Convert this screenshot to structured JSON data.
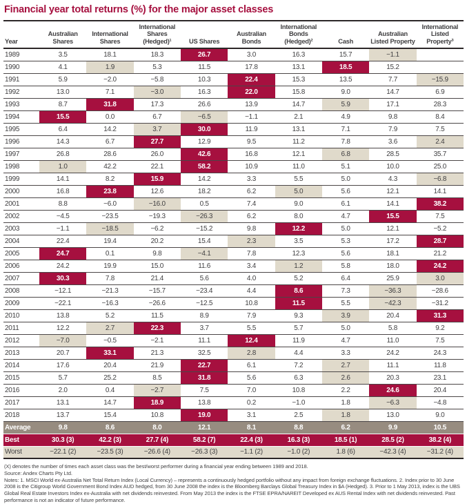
{
  "title": "Financial year total returns (%) for the major asset classes",
  "colors": {
    "accent_crimson": "#A6103F",
    "worst_beige": "#E0DACB",
    "average_taupe": "#978C80",
    "rule_dark": "#2b2627"
  },
  "table": {
    "columns": [
      "Year",
      "Australian Shares",
      "International Shares",
      "International Shares (Hedged)¹",
      "US Shares",
      "Australian Bonds",
      "International Bonds (Hedged)²",
      "Cash",
      "Australian Listed Property",
      "International Listed Property³"
    ],
    "rows": [
      {
        "year": "1989",
        "values": [
          "3.5",
          "18.1",
          "18.3",
          "26.7",
          "3.0",
          "16.3",
          "15.7",
          "−1.1",
          ""
        ],
        "best": 3,
        "worst": 7
      },
      {
        "year": "1990",
        "values": [
          "4.1",
          "1.9",
          "5.3",
          "11.5",
          "17.8",
          "13.1",
          "18.5",
          "15.2",
          ""
        ],
        "best": 6,
        "worst": 1
      },
      {
        "year": "1991",
        "values": [
          "5.9",
          "−2.0",
          "−5.8",
          "10.3",
          "22.4",
          "15.3",
          "13.5",
          "7.7",
          "−15.9"
        ],
        "best": 4,
        "worst": 8
      },
      {
        "year": "1992",
        "values": [
          "13.0",
          "7.1",
          "−3.0",
          "16.3",
          "22.0",
          "15.8",
          "9.0",
          "14.7",
          "6.9"
        ],
        "best": 4,
        "worst": 2
      },
      {
        "year": "1993",
        "values": [
          "8.7",
          "31.8",
          "17.3",
          "26.6",
          "13.9",
          "14.7",
          "5.9",
          "17.1",
          "28.3"
        ],
        "best": 1,
        "worst": 6
      },
      {
        "year": "1994",
        "values": [
          "15.5",
          "0.0",
          "6.7",
          "−6.5",
          "−1.1",
          "2.1",
          "4.9",
          "9.8",
          "8.4"
        ],
        "best": 0,
        "worst": 3
      },
      {
        "year": "1995",
        "values": [
          "6.4",
          "14.2",
          "3.7",
          "30.0",
          "11.9",
          "13.1",
          "7.1",
          "7.9",
          "7.5"
        ],
        "best": 3,
        "worst": 2
      },
      {
        "year": "1996",
        "values": [
          "14.3",
          "6.7",
          "27.7",
          "12.9",
          "9.5",
          "11.2",
          "7.8",
          "3.6",
          "2.4"
        ],
        "best": 2,
        "worst": 8
      },
      {
        "year": "1997",
        "values": [
          "26.8",
          "28.6",
          "26.0",
          "42.6",
          "16.8",
          "12.1",
          "6.8",
          "28.5",
          "35.7"
        ],
        "best": 3,
        "worst": 6
      },
      {
        "year": "1998",
        "values": [
          "1.0",
          "42.2",
          "22.1",
          "58.2",
          "10.9",
          "11.0",
          "5.1",
          "10.0",
          "25.0"
        ],
        "best": 3,
        "worst": 0
      },
      {
        "year": "1999",
        "values": [
          "14.1",
          "8.2",
          "15.9",
          "14.2",
          "3.3",
          "5.5",
          "5.0",
          "4.3",
          "−6.8"
        ],
        "best": 2,
        "worst": 8
      },
      {
        "year": "2000",
        "values": [
          "16.8",
          "23.8",
          "12.6",
          "18.2",
          "6.2",
          "5.0",
          "5.6",
          "12.1",
          "14.1"
        ],
        "best": 1,
        "worst": 5
      },
      {
        "year": "2001",
        "values": [
          "8.8",
          "−6.0",
          "−16.0",
          "0.5",
          "7.4",
          "9.0",
          "6.1",
          "14.1",
          "38.2"
        ],
        "best": 8,
        "worst": 2
      },
      {
        "year": "2002",
        "values": [
          "−4.5",
          "−23.5",
          "−19.3",
          "−26.3",
          "6.2",
          "8.0",
          "4.7",
          "15.5",
          "7.5"
        ],
        "best": 7,
        "worst": 3
      },
      {
        "year": "2003",
        "values": [
          "−1.1",
          "−18.5",
          "−6.2",
          "−15.2",
          "9.8",
          "12.2",
          "5.0",
          "12.1",
          "−5.2"
        ],
        "best": 5,
        "worst": 1
      },
      {
        "year": "2004",
        "values": [
          "22.4",
          "19.4",
          "20.2",
          "15.4",
          "2.3",
          "3.5",
          "5.3",
          "17.2",
          "28.7"
        ],
        "best": 8,
        "worst": 4
      },
      {
        "year": "2005",
        "values": [
          "24.7",
          "0.1",
          "9.8",
          "−4.1",
          "7.8",
          "12.3",
          "5.6",
          "18.1",
          "21.2"
        ],
        "best": 0,
        "worst": 3
      },
      {
        "year": "2006",
        "values": [
          "24.2",
          "19.9",
          "15.0",
          "11.6",
          "3.4",
          "1.2",
          "5.8",
          "18.0",
          "24.2"
        ],
        "best": 8,
        "worst": 5
      },
      {
        "year": "2007",
        "values": [
          "30.3",
          "7.8",
          "21.4",
          "5.6",
          "4.0",
          "5.2",
          "6.4",
          "25.9",
          "3.0"
        ],
        "best": 0,
        "worst": 8
      },
      {
        "year": "2008",
        "values": [
          "−12.1",
          "−21.3",
          "−15.7",
          "−23.4",
          "4.4",
          "8.6",
          "7.3",
          "−36.3",
          "−28.6"
        ],
        "best": 5,
        "worst": 7
      },
      {
        "year": "2009",
        "values": [
          "−22.1",
          "−16.3",
          "−26.6",
          "−12.5",
          "10.8",
          "11.5",
          "5.5",
          "−42.3",
          "−31.2"
        ],
        "best": 5,
        "worst": 7
      },
      {
        "year": "2010",
        "values": [
          "13.8",
          "5.2",
          "11.5",
          "8.9",
          "7.9",
          "9.3",
          "3.9",
          "20.4",
          "31.3"
        ],
        "best": 8,
        "worst": 6
      },
      {
        "year": "2011",
        "values": [
          "12.2",
          "2.7",
          "22.3",
          "3.7",
          "5.5",
          "5.7",
          "5.0",
          "5.8",
          "9.2"
        ],
        "best": 2,
        "worst": 1
      },
      {
        "year": "2012",
        "values": [
          "−7.0",
          "−0.5",
          "−2.1",
          "11.1",
          "12.4",
          "11.9",
          "4.7",
          "11.0",
          "7.5"
        ],
        "best": 4,
        "worst": 0
      },
      {
        "year": "2013",
        "values": [
          "20.7",
          "33.1",
          "21.3",
          "32.5",
          "2.8",
          "4.4",
          "3.3",
          "24.2",
          "24.3"
        ],
        "best": 1,
        "worst": 4
      },
      {
        "year": "2014",
        "values": [
          "17.6",
          "20.4",
          "21.9",
          "22.7",
          "6.1",
          "7.2",
          "2.7",
          "11.1",
          "11.8"
        ],
        "best": 3,
        "worst": 6
      },
      {
        "year": "2015",
        "values": [
          "5.7",
          "25.2",
          "8.5",
          "31.8",
          "5.6",
          "6.3",
          "2.6",
          "20.3",
          "23.1"
        ],
        "best": 3,
        "worst": 6
      },
      {
        "year": "2016",
        "values": [
          "2.0",
          "0.4",
          "−2.7",
          "7.5",
          "7.0",
          "10.8",
          "2.2",
          "24.6",
          "20.4"
        ],
        "best": 7,
        "worst": 2
      },
      {
        "year": "2017",
        "values": [
          "13.1",
          "14.7",
          "18.9",
          "13.8",
          "0.2",
          "−1.0",
          "1.8",
          "−6.3",
          "−4.8"
        ],
        "best": 2,
        "worst": 7
      },
      {
        "year": "2018",
        "values": [
          "13.7",
          "15.4",
          "10.8",
          "19.0",
          "3.1",
          "2.5",
          "1.8",
          "13.0",
          "9.0"
        ],
        "best": 3,
        "worst": 6
      }
    ],
    "summary_rows": [
      {
        "label": "Average",
        "style": "average",
        "values": [
          "9.8",
          "8.6",
          "8.0",
          "12.1",
          "8.1",
          "8.8",
          "6.2",
          "9.9",
          "10.5"
        ]
      },
      {
        "label": "Best",
        "style": "best",
        "values": [
          "30.3 (3)",
          "42.2 (3)",
          "27.7 (4)",
          "58.2 (7)",
          "22.4 (3)",
          "16.3 (3)",
          "18.5 (1)",
          "28.5 (2)",
          "38.2 (4)"
        ]
      },
      {
        "label": "Worst",
        "style": "worst",
        "values": [
          "−22.1 (2)",
          "−23.5 (3)",
          "−26.6 (4)",
          "−26.3 (3)",
          "−1.1 (2)",
          "−1.0 (2)",
          "1.8 (6)",
          "−42.3 (4)",
          "−31.2 (4)"
        ]
      }
    ]
  },
  "footnotes": {
    "denote": "(X) denotes the number of times each asset class was the best/worst performer during a financial year ending between 1989 and 2018.",
    "source": "Source: Andex Charts Pty Ltd.",
    "notes": "Notes: 1. MSCI World ex-Australia Net Total Return Index (Local Currency) – represents a continuously hedged portfolio without any impact from foreign exchange fluctuations. 2. Index prior to 30 June 2008 is the Citigroup World Government Bond Index AUD hedged, from 30 June 2008 the index is the Bloomberg Barclays Global Treasury Index in $A (Hedged).  3. Prior to 1 May 2013, index is the UBS Global Real Estate Investors Index ex-Australia with net dividends reinvested. From May 2013 the index is the FTSE EPRA/NAREIT Developed ex AUS Rental Index with net dividends reinvested. Past performance is not an indicator of future performance."
  }
}
